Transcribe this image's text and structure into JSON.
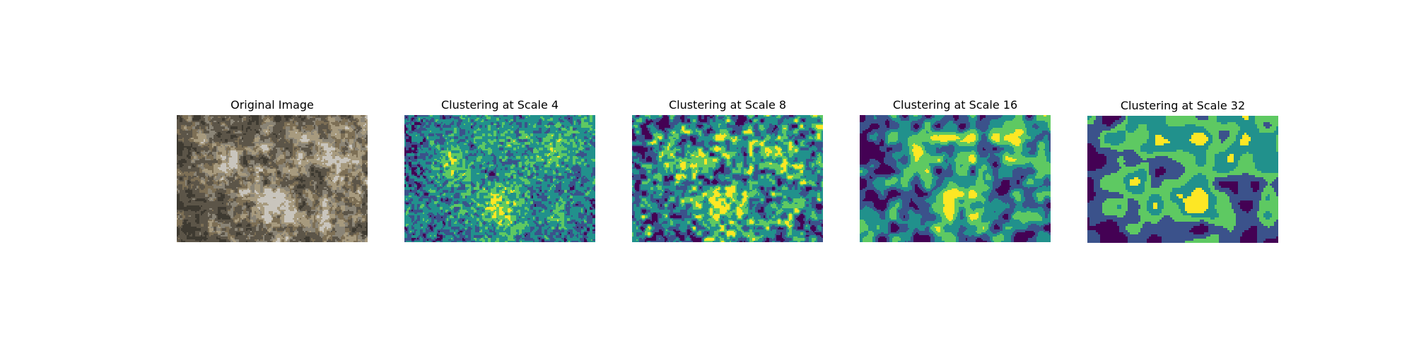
{
  "figure": {
    "panels": [
      {
        "title": "Original Image",
        "kind": "photo"
      },
      {
        "title": "Clustering at Scale 4",
        "kind": "cluster",
        "scale": 4
      },
      {
        "title": "Clustering at Scale 8",
        "kind": "cluster",
        "scale": 8
      },
      {
        "title": "Clustering at Scale 16",
        "kind": "cluster",
        "scale": 16
      },
      {
        "title": "Clustering at Scale 32",
        "kind": "cluster",
        "scale": 32
      }
    ],
    "colormap": [
      "#440154",
      "#3b528b",
      "#21918c",
      "#5ec962",
      "#fde725"
    ],
    "photo_palette": [
      "#5c5548",
      "#8a8476",
      "#c9c5bd",
      "#3e3a31",
      "#7d6f55",
      "#a79a7e"
    ]
  }
}
